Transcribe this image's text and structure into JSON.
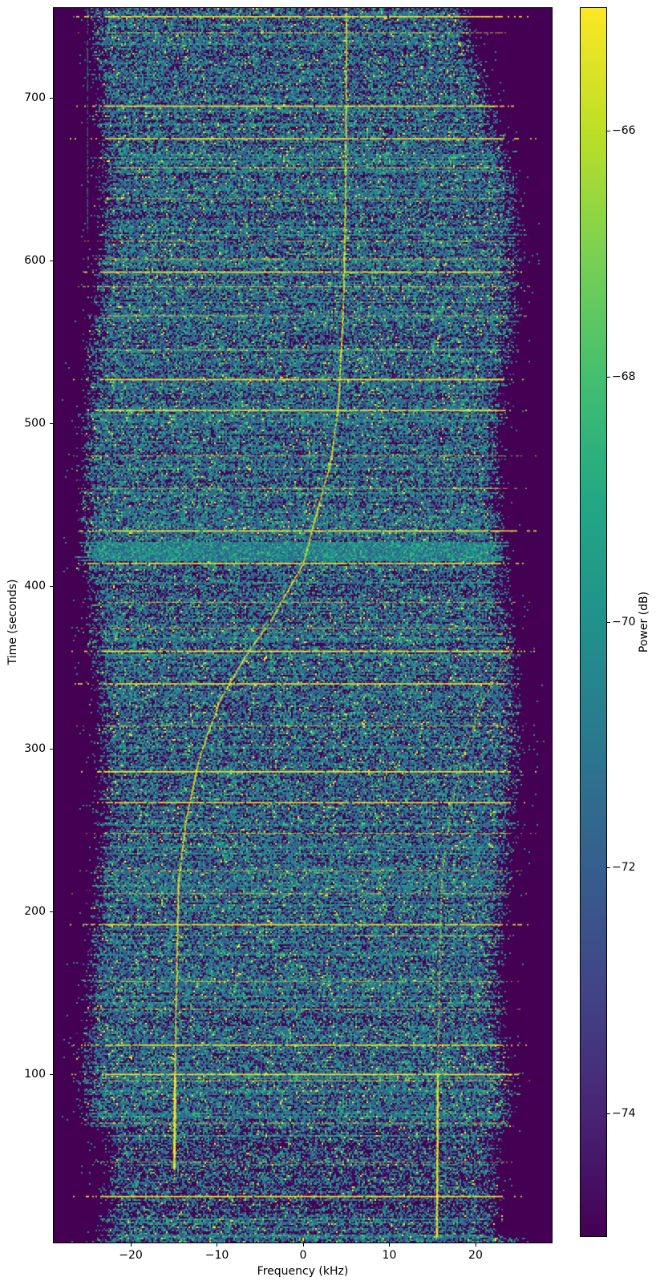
{
  "chart_data": {
    "type": "heatmap",
    "title": "",
    "xlabel": "Frequency (kHz)",
    "ylabel": "Time (seconds)",
    "colorbar_label": "Power (dB)",
    "xlim": [
      -28.93,
      28.84
    ],
    "ylim": [
      -3.4,
      755.2
    ],
    "clim": [
      -75,
      -65
    ],
    "x_ticks": {
      "values": [
        -20,
        -10,
        0,
        10,
        20
      ],
      "labels": [
        "−20",
        "−10",
        "0",
        "10",
        "20"
      ]
    },
    "y_ticks": {
      "values": [
        100,
        200,
        300,
        400,
        500,
        600,
        700
      ],
      "labels": [
        "100",
        "200",
        "300",
        "400",
        "500",
        "600",
        "700"
      ]
    },
    "colorbar_ticks": {
      "values": [
        -66,
        -68,
        -70,
        -72,
        -74
      ],
      "labels": [
        "−66",
        "−68",
        "−70",
        "−72",
        "−74"
      ]
    },
    "colormap": "viridis",
    "viridis_stops": [
      "#440154",
      "#482475",
      "#414487",
      "#355f8d",
      "#2a788e",
      "#21918c",
      "#22a884",
      "#44bf70",
      "#7ad151",
      "#bddf26",
      "#fde725"
    ],
    "background_db_color": "#440154",
    "description": "Doppler spectrogram: speckled noise band approximately -22.5 to +22 kHz over 0-755 s, S-shaped doppler carrier trace rising from -15 kHz to +5 kHz, aliased copy offset +30.5 kHz, and many horizontal yellow interference lines",
    "doppler_curve": {
      "color": "#fde725",
      "points_t_f": [
        [
          0,
          -15.0
        ],
        [
          50,
          -14.95
        ],
        [
          95,
          -14.88
        ],
        [
          150,
          -14.7
        ],
        [
          218,
          -14.45
        ],
        [
          258,
          -13.5
        ],
        [
          295,
          -12.0
        ],
        [
          330,
          -9.6
        ],
        [
          360,
          -6.3
        ],
        [
          378,
          -3.8
        ],
        [
          396,
          -1.9
        ],
        [
          413,
          0.0
        ],
        [
          435,
          1.1
        ],
        [
          455,
          2.1
        ],
        [
          474,
          3.15
        ],
        [
          510,
          4.1
        ],
        [
          573,
          4.7
        ],
        [
          650,
          4.95
        ],
        [
          757,
          5.05
        ]
      ],
      "bright_segment_t": [
        42,
        98
      ]
    },
    "alias_curve": {
      "offset_khz": 30.5,
      "t_range": [
        0,
        363
      ],
      "bright_below_t": 100
    },
    "interference_lines": [
      {
        "t": 750,
        "s": 1
      },
      {
        "t": 740,
        "s": 0.45
      },
      {
        "t": 695,
        "s": 0.9
      },
      {
        "t": 675,
        "s": 0.95
      },
      {
        "t": 657,
        "s": 0.65
      },
      {
        "t": 638,
        "s": 0.4
      },
      {
        "t": 612,
        "s": 0.35
      },
      {
        "t": 601,
        "s": 0.7
      },
      {
        "t": 593,
        "s": 0.85
      },
      {
        "t": 584,
        "s": 0.55
      },
      {
        "t": 566,
        "s": 0.4
      },
      {
        "t": 545,
        "s": 0.35
      },
      {
        "t": 527,
        "s": 0.95
      },
      {
        "t": 508,
        "s": 0.95
      },
      {
        "t": 480,
        "s": 0.4
      },
      {
        "t": 460,
        "s": 0.35
      },
      {
        "t": 434,
        "s": 1
      },
      {
        "t": 414,
        "s": 1
      },
      {
        "t": 390,
        "s": 0.45
      },
      {
        "t": 374,
        "s": 0.4
      },
      {
        "t": 360,
        "s": 1
      },
      {
        "t": 340,
        "s": 0.95
      },
      {
        "t": 314,
        "s": 0.45
      },
      {
        "t": 286,
        "s": 1
      },
      {
        "t": 267,
        "s": 0.95
      },
      {
        "t": 248,
        "s": 0.7
      },
      {
        "t": 225,
        "s": 0.4
      },
      {
        "t": 211,
        "s": 0.5
      },
      {
        "t": 192,
        "s": 1
      },
      {
        "t": 185,
        "s": 0.6,
        "f_range": [
          5,
          24
        ]
      },
      {
        "t": 157,
        "s": 0.4
      },
      {
        "t": 140,
        "s": 0.35
      },
      {
        "t": 118,
        "s": 0.95
      },
      {
        "t": 100,
        "s": 0.95
      },
      {
        "t": 96,
        "s": 0.55
      },
      {
        "t": 70,
        "s": 0.4
      },
      {
        "t": 46,
        "s": 0.35
      },
      {
        "t": 25,
        "s": 0.95
      }
    ],
    "vertical_lines": [
      {
        "f": -25.0,
        "t_range": [
          618,
          757
        ],
        "s": 0.55,
        "color": "#22a884"
      },
      {
        "f": 16.5,
        "t_range": [
          0,
          116
        ],
        "s": 0.5,
        "color": "#22a884"
      }
    ],
    "bands": {
      "green_bright_t": [
        416,
        428
      ],
      "post_green_t": [
        428,
        448
      ],
      "dim_bottom_t": [
        0,
        68
      ]
    },
    "noise": {
      "band_khz": [
        -22.4,
        21.8
      ],
      "fade_khz": 2.8,
      "line_color": "#fde725",
      "palette": [
        "#355f8d",
        "#2a788e",
        "#21918c",
        "#22a884",
        "#44bf70",
        "#7ad151",
        "#fde725",
        "#46327e"
      ],
      "weights": [
        0.21,
        0.19,
        0.12,
        0.075,
        0.042,
        0.02,
        0.012,
        0.1
      ],
      "dark_variants": [
        "#470c5f",
        "#3c0a53"
      ]
    }
  }
}
